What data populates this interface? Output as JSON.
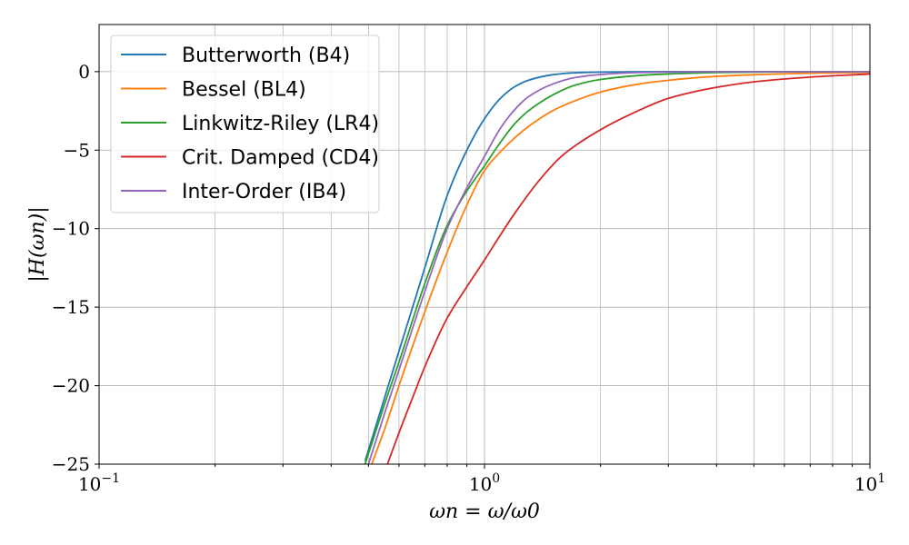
{
  "chart_data": {
    "type": "line",
    "x_scale": "log",
    "xlim": [
      0.1,
      10
    ],
    "ylim": [
      -25,
      3
    ],
    "grid": "major and minor (x), major (y)",
    "legend_position": "top-left",
    "xlabel": "ωn = ω/ω0",
    "ylabel": "|H(ωn)|",
    "x_ticks": [
      {
        "value": 0.1,
        "base": "10",
        "exp": "−1"
      },
      {
        "value": 1,
        "base": "10",
        "exp": "0"
      },
      {
        "value": 10,
        "base": "10",
        "exp": "1"
      }
    ],
    "y_ticks": [
      {
        "value": 0,
        "label": "0"
      },
      {
        "value": -5,
        "label": "−5"
      },
      {
        "value": -10,
        "label": "−10"
      },
      {
        "value": -15,
        "label": "−15"
      },
      {
        "value": -20,
        "label": "−20"
      },
      {
        "value": -25,
        "label": "−25"
      }
    ],
    "series": [
      {
        "name": "Butterworth (B4)",
        "color": "#1f77b4",
        "x": [
          0.49,
          0.55,
          0.6,
          0.7,
          0.8,
          0.9,
          1.0,
          1.1,
          1.2,
          1.3,
          1.5,
          1.7,
          2.0,
          2.5,
          3.0,
          4.0,
          5.0,
          7.0,
          10.0
        ],
        "y": [
          -24.8,
          -20.8,
          -17.8,
          -12.5,
          -7.9,
          -5.0,
          -3.0,
          -1.7,
          -0.95,
          -0.55,
          -0.2,
          -0.08,
          -0.03,
          -0.01,
          0,
          0,
          0,
          0,
          0
        ]
      },
      {
        "name": "Bessel (BL4)",
        "color": "#ff7f0e",
        "x": [
          0.51,
          0.55,
          0.6,
          0.7,
          0.8,
          0.9,
          1.0,
          1.1,
          1.2,
          1.3,
          1.5,
          1.7,
          2.0,
          2.5,
          3.0,
          4.0,
          5.0,
          7.0,
          10.0
        ],
        "y": [
          -25.0,
          -22.8,
          -20.0,
          -15.3,
          -11.5,
          -8.5,
          -6.3,
          -5.1,
          -4.2,
          -3.5,
          -2.5,
          -1.9,
          -1.3,
          -0.8,
          -0.55,
          -0.3,
          -0.2,
          -0.1,
          -0.05
        ]
      },
      {
        "name": "Linkwitz-Riley (LR4)",
        "color": "#2ca02c",
        "x": [
          0.49,
          0.55,
          0.6,
          0.7,
          0.8,
          0.9,
          1.0,
          1.1,
          1.2,
          1.3,
          1.5,
          1.7,
          2.0,
          2.5,
          3.0,
          4.0,
          5.0,
          7.0,
          10.0
        ],
        "y": [
          -25.0,
          -21.2,
          -18.5,
          -13.5,
          -9.8,
          -7.6,
          -6.0,
          -4.5,
          -3.3,
          -2.5,
          -1.5,
          -0.9,
          -0.5,
          -0.25,
          -0.15,
          -0.06,
          -0.03,
          -0.01,
          0
        ]
      },
      {
        "name": "Crit. Damped (CD4)",
        "color": "#d62728",
        "x": [
          0.56,
          0.6,
          0.65,
          0.7,
          0.8,
          0.9,
          1.0,
          1.1,
          1.2,
          1.4,
          1.6,
          2.0,
          2.5,
          3.0,
          4.0,
          5.0,
          7.0,
          10.0
        ],
        "y": [
          -25.0,
          -23.0,
          -20.8,
          -18.8,
          -15.7,
          -13.7,
          -12.0,
          -10.4,
          -9.0,
          -6.8,
          -5.3,
          -3.7,
          -2.5,
          -1.7,
          -1.0,
          -0.65,
          -0.35,
          -0.15
        ]
      },
      {
        "name": "Inter-Order (IB4)",
        "color": "#9467bd",
        "x": [
          0.5,
          0.55,
          0.6,
          0.7,
          0.8,
          0.9,
          1.0,
          1.1,
          1.2,
          1.3,
          1.5,
          1.7,
          2.0,
          2.5,
          3.0,
          4.0,
          5.0,
          7.0,
          10.0
        ],
        "y": [
          -25.0,
          -21.8,
          -19.0,
          -14.0,
          -10.0,
          -7.4,
          -5.4,
          -3.6,
          -2.4,
          -1.6,
          -0.8,
          -0.4,
          -0.18,
          -0.06,
          -0.03,
          0,
          0,
          0,
          0
        ]
      }
    ]
  }
}
